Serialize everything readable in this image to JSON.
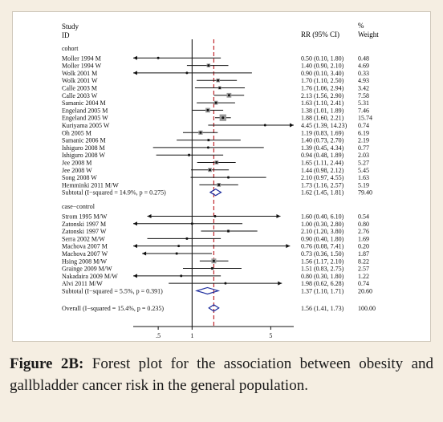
{
  "chart_data": {
    "type": "forest",
    "header": {
      "col1": [
        "Study",
        "ID"
      ],
      "col_ci": "RR (95% CI)",
      "col_weight": [
        "%",
        "Weight"
      ]
    },
    "xscale": "log",
    "x_ticks": [
      {
        "value": 0.5,
        "label": ".5"
      },
      {
        "value": 1,
        "label": "1"
      },
      {
        "value": 5,
        "label": "5"
      }
    ],
    "xlim": [
      0.3,
      8
    ],
    "null_line": 1,
    "overall_line": 1.56,
    "groups": [
      {
        "name": "cohort",
        "studies": [
          {
            "label": "Moller 1994 M",
            "rr": 0.5,
            "lo": 0.1,
            "hi": 1.8,
            "ci": "0.50 (0.10, 1.80)",
            "weight": "0.48",
            "arrow_left": true,
            "arrow_right": false
          },
          {
            "label": "Moller 1994 W",
            "rr": 1.4,
            "lo": 0.9,
            "hi": 2.1,
            "ci": "1.40 (0.90, 2.10)",
            "weight": "4.69",
            "arrow_left": false,
            "arrow_right": false
          },
          {
            "label": "Wolk 2001 M",
            "rr": 0.9,
            "lo": 0.1,
            "hi": 3.4,
            "ci": "0.90 (0.10, 3.40)",
            "weight": "0.33",
            "arrow_left": true,
            "arrow_right": false
          },
          {
            "label": "Wolk 2001 W",
            "rr": 1.7,
            "lo": 1.1,
            "hi": 2.5,
            "ci": "1.70 (1.10, 2.50)",
            "weight": "4.93",
            "arrow_left": false,
            "arrow_right": false
          },
          {
            "label": "Calle 2003 M",
            "rr": 1.76,
            "lo": 1.06,
            "hi": 2.94,
            "ci": "1.76 (1.06, 2.94)",
            "weight": "3.42",
            "arrow_left": false,
            "arrow_right": false
          },
          {
            "label": "Calle 2003 W",
            "rr": 2.13,
            "lo": 1.56,
            "hi": 2.9,
            "ci": "2.13 (1.56, 2.90)",
            "weight": "7.58",
            "arrow_left": false,
            "arrow_right": false
          },
          {
            "label": "Samanic 2004 M",
            "rr": 1.63,
            "lo": 1.1,
            "hi": 2.41,
            "ci": "1.63 (1.10, 2.41)",
            "weight": "5.31",
            "arrow_left": false,
            "arrow_right": false
          },
          {
            "label": "Engeland 2005 M",
            "rr": 1.38,
            "lo": 1.01,
            "hi": 1.89,
            "ci": "1.38 (1.01, 1.89)",
            "weight": "7.46",
            "arrow_left": false,
            "arrow_right": false
          },
          {
            "label": "Engeland 2005 W",
            "rr": 1.88,
            "lo": 1.6,
            "hi": 2.21,
            "ci": "1.88 (1.60, 2.21)",
            "weight": "15.74",
            "arrow_left": false,
            "arrow_right": false
          },
          {
            "label": "Kuriyama 2005 W",
            "rr": 4.45,
            "lo": 1.39,
            "hi": 14.23,
            "ci": "4.45 (1.39, 14.23)",
            "weight": "0.74",
            "arrow_left": false,
            "arrow_right": true
          },
          {
            "label": "Oh 2005 M",
            "rr": 1.19,
            "lo": 0.83,
            "hi": 1.69,
            "ci": "1.19 (0.83, 1.69)",
            "weight": "6.19",
            "arrow_left": false,
            "arrow_right": false
          },
          {
            "label": "Samanic 2006 M",
            "rr": 1.4,
            "lo": 0.73,
            "hi": 2.7,
            "ci": "1.40 (0.73, 2.70)",
            "weight": "2.19",
            "arrow_left": false,
            "arrow_right": false
          },
          {
            "label": "Ishiguro 2008 M",
            "rr": 1.39,
            "lo": 0.45,
            "hi": 4.34,
            "ci": "1.39 (0.45, 4.34)",
            "weight": "0.77",
            "arrow_left": false,
            "arrow_right": false
          },
          {
            "label": "Ishiguro 2008 W",
            "rr": 0.94,
            "lo": 0.48,
            "hi": 1.89,
            "ci": "0.94 (0.48, 1.89)",
            "weight": "2.03",
            "arrow_left": false,
            "arrow_right": false
          },
          {
            "label": "Jee 2008 M",
            "rr": 1.65,
            "lo": 1.11,
            "hi": 2.44,
            "ci": "1.65 (1.11, 2.44)",
            "weight": "5.27",
            "arrow_left": false,
            "arrow_right": false
          },
          {
            "label": "Jee 2008 W",
            "rr": 1.44,
            "lo": 0.98,
            "hi": 2.12,
            "ci": "1.44 (0.98, 2.12)",
            "weight": "5.45",
            "arrow_left": false,
            "arrow_right": false
          },
          {
            "label": "Song 2008 W",
            "rr": 2.1,
            "lo": 0.97,
            "hi": 4.55,
            "ci": "2.10 (0.97, 4.55)",
            "weight": "1.63",
            "arrow_left": false,
            "arrow_right": false
          },
          {
            "label": "Hemminki 2011 M/W",
            "rr": 1.73,
            "lo": 1.16,
            "hi": 2.57,
            "ci": "1.73 (1.16, 2.57)",
            "weight": "5.19",
            "arrow_left": false,
            "arrow_right": false
          }
        ],
        "subtotal": {
          "label": "Subtotal  (I−squared = 14.9%, p = 0.275)",
          "rr": 1.62,
          "lo": 1.45,
          "hi": 1.81,
          "ci": "1.62 (1.45, 1.81)",
          "weight": "79.40"
        }
      },
      {
        "name": "case−control",
        "studies": [
          {
            "label": "Strom 1995 M/W",
            "rr": 1.6,
            "lo": 0.4,
            "hi": 6.1,
            "ci": "1.60 (0.40, 6.10)",
            "weight": "0.54",
            "arrow_left": true,
            "arrow_right": true
          },
          {
            "label": "Zatonski 1997 M",
            "rr": 1.0,
            "lo": 0.3,
            "hi": 2.8,
            "ci": "1.00 (0.30, 2.80)",
            "weight": "0.80",
            "arrow_left": true,
            "arrow_right": false
          },
          {
            "label": "Zatonski 1997 W",
            "rr": 2.1,
            "lo": 1.2,
            "hi": 3.8,
            "ci": "2.10 (1.20, 3.80)",
            "weight": "2.76",
            "arrow_left": false,
            "arrow_right": false
          },
          {
            "label": "Serra 2002 M/W",
            "rr": 0.9,
            "lo": 0.4,
            "hi": 1.8,
            "ci": "0.90 (0.40, 1.80)",
            "weight": "1.69",
            "arrow_left": false,
            "arrow_right": false
          },
          {
            "label": "Machova 2007 M",
            "rr": 0.76,
            "lo": 0.08,
            "hi": 7.41,
            "ci": "0.76 (0.08, 7.41)",
            "weight": "0.20",
            "arrow_left": true,
            "arrow_right": true
          },
          {
            "label": "Machova 2007 W",
            "rr": 0.73,
            "lo": 0.36,
            "hi": 1.5,
            "ci": "0.73 (0.36, 1.50)",
            "weight": "1.87",
            "arrow_left": true,
            "arrow_right": false
          },
          {
            "label": "Hsing 2008 M/W",
            "rr": 1.56,
            "lo": 1.17,
            "hi": 2.1,
            "ci": "1.56 (1.17, 2.10)",
            "weight": "8.22",
            "arrow_left": false,
            "arrow_right": false
          },
          {
            "label": "Grainge 2009 M/W",
            "rr": 1.51,
            "lo": 0.83,
            "hi": 2.75,
            "ci": "1.51 (0.83, 2.75)",
            "weight": "2.57",
            "arrow_left": false,
            "arrow_right": false
          },
          {
            "label": "Nakadaira 2009 M/W",
            "rr": 0.8,
            "lo": 0.3,
            "hi": 1.8,
            "ci": "0.80 (0.30, 1.80)",
            "weight": "1.22",
            "arrow_left": true,
            "arrow_right": false
          },
          {
            "label": "Alvi 2011 M/W",
            "rr": 1.98,
            "lo": 0.62,
            "hi": 6.28,
            "ci": "1.98 (0.62, 6.28)",
            "weight": "0.74",
            "arrow_left": false,
            "arrow_right": true
          }
        ],
        "subtotal": {
          "label": "Subtotal  (I−squared = 5.5%, p = 0.391)",
          "rr": 1.37,
          "lo": 1.1,
          "hi": 1.71,
          "ci": "1.37 (1.10, 1.71)",
          "weight": "20.60"
        }
      }
    ],
    "overall": {
      "label": "Overall  (I−squared = 15.4%, p = 0.235)",
      "rr": 1.56,
      "lo": 1.41,
      "hi": 1.73,
      "ci": "1.56 (1.41, 1.73)",
      "weight": "100.00"
    },
    "colors": {
      "diamond": "#1f2f9e",
      "null_line": "#000000",
      "overall_line": "#c0272d",
      "box": "#9a9a9a"
    }
  },
  "caption": {
    "label": "Figure 2B:",
    "text": "Forest plot for the association between obesity and gallbladder cancer risk in the general population."
  }
}
